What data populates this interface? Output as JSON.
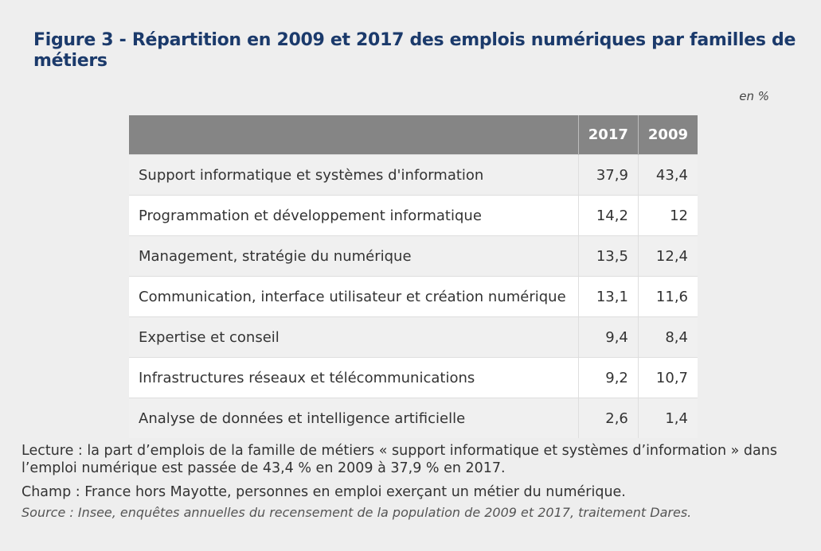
{
  "title": "Figure 3 - Répartition en 2009 et 2017 des emplois numériques par familles de métiers",
  "unit": "en %",
  "table": {
    "headers": [
      "",
      "2017",
      "2009"
    ],
    "rows": [
      {
        "label": "Support informatique et systèmes d'information",
        "v2017": "37,9",
        "v2009": "43,4"
      },
      {
        "label": "Programmation et développement informatique",
        "v2017": "14,2",
        "v2009": "12"
      },
      {
        "label": "Management, stratégie du numérique",
        "v2017": "13,5",
        "v2009": "12,4"
      },
      {
        "label": "Communication, interface utilisateur et création numérique",
        "v2017": "13,1",
        "v2009": "11,6"
      },
      {
        "label": "Expertise et conseil",
        "v2017": "9,4",
        "v2009": "8,4"
      },
      {
        "label": "Infrastructures réseaux et télécommunications",
        "v2017": "9,2",
        "v2009": "10,7"
      },
      {
        "label": "Analyse de données et intelligence artificielle",
        "v2017": "2,6",
        "v2009": "1,4"
      }
    ]
  },
  "notes": {
    "lecture": "Lecture : la part d’emplois de la famille de métiers « support informatique et systèmes d’information » dans l’emploi numérique est passée de 43,4 % en 2009 à 37,9 % en 2017.",
    "champ": "Champ : France hors Mayotte, personnes en emploi exerçant un métier du numérique.",
    "source": "Source : Insee, enquêtes annuelles du recensement de la population de 2009 et 2017, traitement Dares."
  }
}
